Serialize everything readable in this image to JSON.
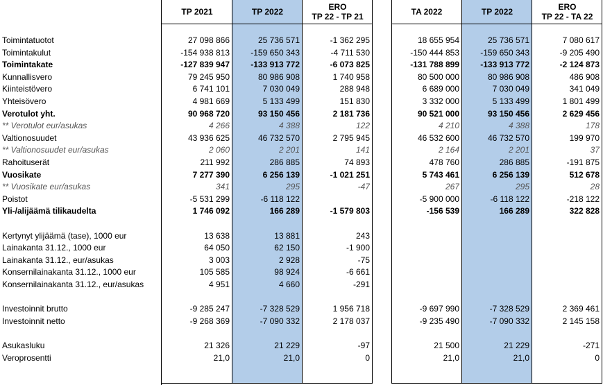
{
  "headers": {
    "tp2021": "TP 2021",
    "tp2022_a": "TP 2022",
    "ero1_l1": "ERO",
    "ero1_l2": "TP 22 - TP 21",
    "ta2022": "TA 2022",
    "tp2022_b": "TP 2022",
    "ero2_l1": "ERO",
    "ero2_l2": "TP 22 - TA 22"
  },
  "rows": [
    {
      "label": "Toimintatuotot",
      "v": [
        "27 098 866",
        "25 736 571",
        "-1 362 295",
        "18 655 954",
        "25 736 571",
        "7 080 617"
      ],
      "style": ""
    },
    {
      "label": "Toimintakulut",
      "v": [
        "-154 938 813",
        "-159 650 343",
        "-4 711 530",
        "-150 444 853",
        "-159 650 343",
        "-9 205 490"
      ],
      "style": ""
    },
    {
      "label": "Toimintakate",
      "v": [
        "-127 839 947",
        "-133 913 772",
        "-6 073 825",
        "-131 788 899",
        "-133 913 772",
        "-2 124 873"
      ],
      "style": "bold"
    },
    {
      "label": "Kunnallisvero",
      "v": [
        "79 245 950",
        "80 986 908",
        "1 740 958",
        "80 500 000",
        "80 986 908",
        "486 908"
      ],
      "style": ""
    },
    {
      "label": "Kiinteistövero",
      "v": [
        "6 741 101",
        "7 030 049",
        "288 948",
        "6 689 000",
        "7 030 049",
        "341 049"
      ],
      "style": ""
    },
    {
      "label": "Yhteisövero",
      "v": [
        "4 981 669",
        "5 133 499",
        "151 830",
        "3 332 000",
        "5 133 499",
        "1 801 499"
      ],
      "style": ""
    },
    {
      "label": "Verotulot yht.",
      "v": [
        "90 968 720",
        "93 150 456",
        "2 181 736",
        "90 521 000",
        "93 150 456",
        "2 629 456"
      ],
      "style": "bold"
    },
    {
      "label": "** Verotulot eur/asukas",
      "v": [
        "4 266",
        "4 388",
        "122",
        "4 210",
        "4 388",
        "178"
      ],
      "style": "ital"
    },
    {
      "label": "Valtionosuudet",
      "v": [
        "43 936 625",
        "46 732 570",
        "2 795 945",
        "46 532 600",
        "46 732 570",
        "199 970"
      ],
      "style": ""
    },
    {
      "label": "** Valtionosuudet eur/asukas",
      "v": [
        "2 060",
        "2 201",
        "141",
        "2 164",
        "2 201",
        "37"
      ],
      "style": "ital"
    },
    {
      "label": "Rahoituserät",
      "v": [
        "211 992",
        "286 885",
        "74 893",
        "478 760",
        "286 885",
        "-191 875"
      ],
      "style": ""
    },
    {
      "label": "Vuosikate",
      "v": [
        "7 277 390",
        "6 256 139",
        "-1 021 251",
        "5 743 461",
        "6 256 139",
        "512 678"
      ],
      "style": "bold"
    },
    {
      "label": "** Vuosikate eur/asukas",
      "v": [
        "341",
        "295",
        "-47",
        "267",
        "295",
        "28"
      ],
      "style": "ital"
    },
    {
      "label": "Poistot",
      "v": [
        "-5 531 299",
        "-6 118 122",
        "",
        "-5 900 000",
        "-6 118 122",
        "-218 122"
      ],
      "style": ""
    },
    {
      "label": "Yli-/alijäämä tilikaudelta",
      "v": [
        "1 746 092",
        "166 289",
        "-1 579 803",
        "-156 539",
        "166 289",
        "322 828"
      ],
      "style": "bold"
    },
    {
      "label": "",
      "v": [
        "",
        "",
        "",
        "",
        "",
        ""
      ],
      "style": ""
    },
    {
      "label": "Kertynyt ylijäämä (tase), 1000 eur",
      "v": [
        "13 638",
        "13 881",
        "243",
        "",
        "",
        ""
      ],
      "style": ""
    },
    {
      "label": "Lainakanta 31.12., 1000 eur",
      "v": [
        "64 050",
        "62 150",
        "-1 900",
        "",
        "",
        ""
      ],
      "style": ""
    },
    {
      "label": "Lainakanta 31.12., eur/asukas",
      "v": [
        "3 003",
        "2 928",
        "-75",
        "",
        "",
        ""
      ],
      "style": ""
    },
    {
      "label": "Konsernilainakanta 31.12., 1000 eur",
      "v": [
        "105 585",
        "98 924",
        "-6 661",
        "",
        "",
        ""
      ],
      "style": ""
    },
    {
      "label": "Konsernilainakanta 31.12., eur/asukas",
      "v": [
        "4 951",
        "4 660",
        "-291",
        "",
        "",
        ""
      ],
      "style": ""
    },
    {
      "label": "",
      "v": [
        "",
        "",
        "",
        "",
        "",
        ""
      ],
      "style": ""
    },
    {
      "label": "Investoinnit brutto",
      "v": [
        "-9 285 247",
        "-7 328 529",
        "1 956 718",
        "-9 697 990",
        "-7 328 529",
        "2 369 461"
      ],
      "style": ""
    },
    {
      "label": "Investoinnit netto",
      "v": [
        "-9 268 369",
        "-7 090 332",
        "2 178 037",
        "-9 235 490",
        "-7 090 332",
        "2 145 158"
      ],
      "style": ""
    },
    {
      "label": "",
      "v": [
        "",
        "",
        "",
        "",
        "",
        ""
      ],
      "style": ""
    },
    {
      "label": "Asukasluku",
      "v": [
        "21 326",
        "21 229",
        "-97",
        "21 500",
        "21 229",
        "-271"
      ],
      "style": ""
    },
    {
      "label": "Veroprosentti",
      "v": [
        "21,0",
        "21,0",
        "0",
        "21,0",
        "21,0",
        "0"
      ],
      "style": ""
    }
  ]
}
